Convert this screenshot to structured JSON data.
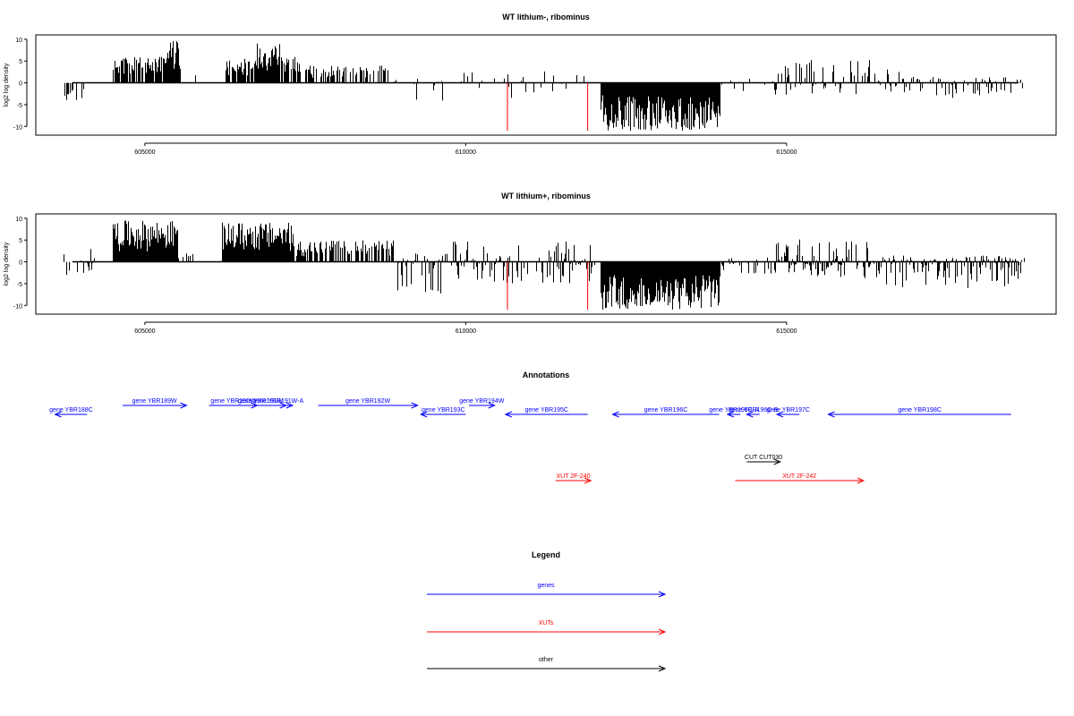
{
  "figure": {
    "panels": [
      {
        "title": "WT lithium-, ribominus",
        "ylabel": "log2 log density"
      },
      {
        "title": "WT lithium+, ribominus",
        "ylabel": "log2 log density"
      }
    ],
    "annotations_title": "Annotations",
    "legend_title": "Legend"
  },
  "colors": {
    "genes": "#0000ff",
    "xuts": "#ff0000",
    "other": "#000000",
    "signal": "#000000",
    "marker": "#ff0000"
  },
  "chart_data": {
    "type": "bar",
    "xlim": [
      603300,
      619200
    ],
    "ylim": [
      -12,
      11
    ],
    "x_ticks": [
      605000,
      610000,
      615000
    ],
    "y_ticks": [
      10,
      5,
      0,
      -5,
      -10
    ],
    "marker_lines_x": [
      610650,
      611900
    ],
    "tracks": [
      {
        "panel": "WT lithium-, ribominus",
        "segments": [
          {
            "from": 603700,
            "to": 604050,
            "min": -4,
            "max": 0,
            "density": 0.45
          },
          {
            "from": 604500,
            "to": 605300,
            "min": 0,
            "max": 6,
            "density": 0.85
          },
          {
            "from": 605300,
            "to": 605550,
            "min": 0,
            "max": 10,
            "density": 1.0
          },
          {
            "from": 605550,
            "to": 605800,
            "min": 0,
            "max": 2,
            "density": 0.15
          },
          {
            "from": 606250,
            "to": 606700,
            "min": 0,
            "max": 6,
            "density": 0.75
          },
          {
            "from": 606700,
            "to": 607100,
            "min": 0,
            "max": 9.5,
            "density": 1.0
          },
          {
            "from": 607100,
            "to": 607400,
            "min": 0,
            "max": 6,
            "density": 0.7
          },
          {
            "from": 607400,
            "to": 608800,
            "min": 0,
            "max": 4,
            "density": 0.4
          },
          {
            "from": 608800,
            "to": 609800,
            "min": -5.5,
            "max": 1,
            "density": 0.35
          },
          {
            "from": 609800,
            "to": 610600,
            "min": -2,
            "max": 4,
            "density": 0.25
          },
          {
            "from": 610600,
            "to": 612000,
            "min": -3.5,
            "max": 3,
            "density": 0.2
          },
          {
            "from": 612100,
            "to": 613950,
            "min": -11,
            "max": 0,
            "density": 1.0
          },
          {
            "from": 613950,
            "to": 614800,
            "min": -2,
            "max": 1,
            "density": 0.15
          },
          {
            "from": 614800,
            "to": 616800,
            "min": -3,
            "max": 5.5,
            "density": 0.5
          },
          {
            "from": 616800,
            "to": 618700,
            "min": -3.5,
            "max": 1.5,
            "density": 0.5
          }
        ]
      },
      {
        "panel": "WT lithium+, ribominus",
        "segments": [
          {
            "from": 603700,
            "to": 604200,
            "min": -4,
            "max": 3,
            "density": 0.5
          },
          {
            "from": 604500,
            "to": 605500,
            "min": 0,
            "max": 9.5,
            "density": 1.0
          },
          {
            "from": 605500,
            "to": 605800,
            "min": 0,
            "max": 2,
            "density": 0.2
          },
          {
            "from": 606200,
            "to": 607300,
            "min": 0,
            "max": 9,
            "density": 1.0
          },
          {
            "from": 607300,
            "to": 608900,
            "min": 0,
            "max": 5,
            "density": 0.65
          },
          {
            "from": 608900,
            "to": 609800,
            "min": -8,
            "max": 2,
            "density": 0.6
          },
          {
            "from": 609800,
            "to": 612000,
            "min": -5,
            "max": 5,
            "density": 0.55
          },
          {
            "from": 612100,
            "to": 613950,
            "min": -11,
            "max": 0,
            "density": 1.0
          },
          {
            "from": 613950,
            "to": 614800,
            "min": -3,
            "max": 2,
            "density": 0.35
          },
          {
            "from": 614800,
            "to": 616500,
            "min": -4,
            "max": 5.5,
            "density": 0.8
          },
          {
            "from": 616500,
            "to": 618700,
            "min": -6,
            "max": 1.5,
            "density": 0.75
          }
        ]
      }
    ],
    "annotations": [
      {
        "label": "gene YBR188C",
        "start": 604100,
        "end": 603600,
        "lane": 1,
        "kind": "gene"
      },
      {
        "label": "gene YBR189W",
        "start": 604650,
        "end": 605650,
        "lane": 0,
        "kind": "gene"
      },
      {
        "label": "gene YBR190W",
        "start": 606000,
        "end": 606750,
        "lane": 0,
        "kind": "gene"
      },
      {
        "label": "gene YBR191W",
        "start": 606400,
        "end": 607200,
        "lane": 0,
        "kind": "gene"
      },
      {
        "label": "gene YBR191W-A",
        "start": 606850,
        "end": 607300,
        "lane": 0,
        "kind": "gene"
      },
      {
        "label": "gene YBR192W",
        "start": 607700,
        "end": 609250,
        "lane": 0,
        "kind": "gene"
      },
      {
        "label": "gene YBR193C",
        "start": 610000,
        "end": 609300,
        "lane": 1,
        "kind": "gene"
      },
      {
        "label": "gene YBR194W",
        "start": 610050,
        "end": 610450,
        "lane": 0,
        "kind": "gene"
      },
      {
        "label": "gene YBR195C",
        "start": 611900,
        "end": 610620,
        "lane": 1,
        "kind": "gene"
      },
      {
        "label": "gene YBR196C",
        "start": 613950,
        "end": 612290,
        "lane": 1,
        "kind": "gene"
      },
      {
        "label": "gene YBR196C-A",
        "start": 614280,
        "end": 614080,
        "lane": 1,
        "kind": "gene"
      },
      {
        "label": "gene YBR196C-B",
        "start": 614580,
        "end": 614380,
        "lane": 1,
        "kind": "gene"
      },
      {
        "label": "gene YBR197C",
        "start": 615200,
        "end": 614850,
        "lane": 1,
        "kind": "gene"
      },
      {
        "label": "gene YBR198C",
        "start": 618500,
        "end": 615650,
        "lane": 1,
        "kind": "gene"
      },
      {
        "label": "CUT CUT030",
        "start": 614380,
        "end": 614900,
        "lane": 2,
        "kind": "other"
      },
      {
        "label": "XUT 2F-240",
        "start": 611400,
        "end": 611950,
        "lane": 3,
        "kind": "xut"
      },
      {
        "label": "XUT 2F-242",
        "start": 614200,
        "end": 616200,
        "lane": 3,
        "kind": "xut"
      }
    ],
    "legend": [
      {
        "label": "genes",
        "kind": "gene"
      },
      {
        "label": "XUTs",
        "kind": "xut"
      },
      {
        "label": "other",
        "kind": "other"
      }
    ]
  }
}
